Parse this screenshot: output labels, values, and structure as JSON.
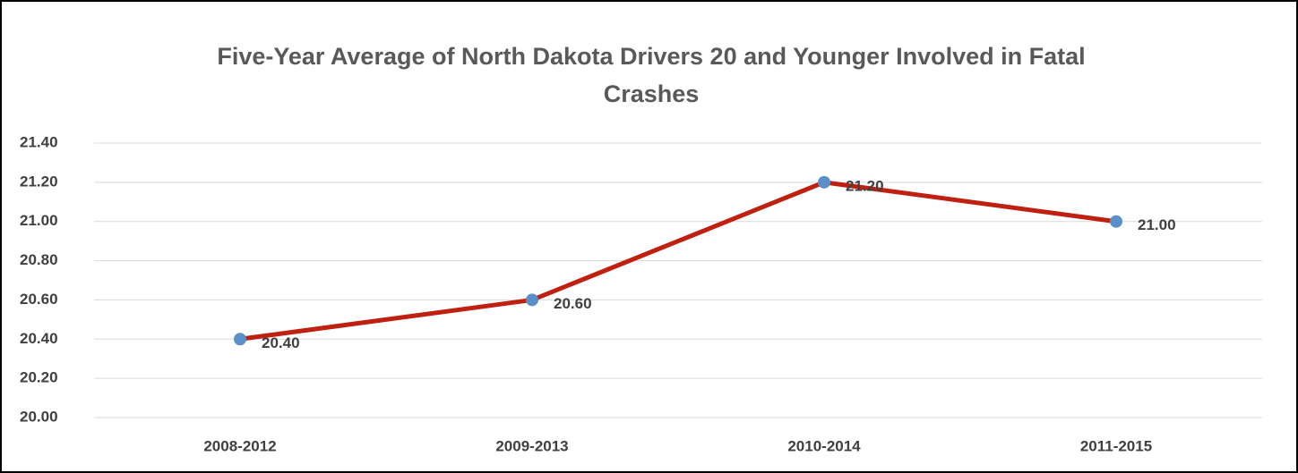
{
  "chart_data": {
    "type": "line",
    "title": "Five-Year Average of North Dakota Drivers 20 and Younger Involved in Fatal Crashes",
    "categories": [
      "2008-2012",
      "2009-2013",
      "2010-2014",
      "2011-2015"
    ],
    "series": [
      {
        "name": "Drivers 20 and Younger",
        "color": "#c0200f",
        "marker_color": "#5b8fc9",
        "values": [
          20.4,
          20.6,
          21.2,
          21.0
        ],
        "value_labels": [
          "20.40",
          "20.60",
          "21.20",
          "21.00"
        ]
      }
    ],
    "ylim": [
      20.0,
      21.4
    ],
    "yticks": [
      {
        "value": 20.0,
        "label": "20.00"
      },
      {
        "value": 20.2,
        "label": "20.20"
      },
      {
        "value": 20.4,
        "label": "20.40"
      },
      {
        "value": 20.6,
        "label": "20.60"
      },
      {
        "value": 20.8,
        "label": "20.80"
      },
      {
        "value": 21.0,
        "label": "21.00"
      },
      {
        "value": 21.2,
        "label": "21.20"
      },
      {
        "value": 21.4,
        "label": "21.40"
      }
    ],
    "grid": true
  }
}
